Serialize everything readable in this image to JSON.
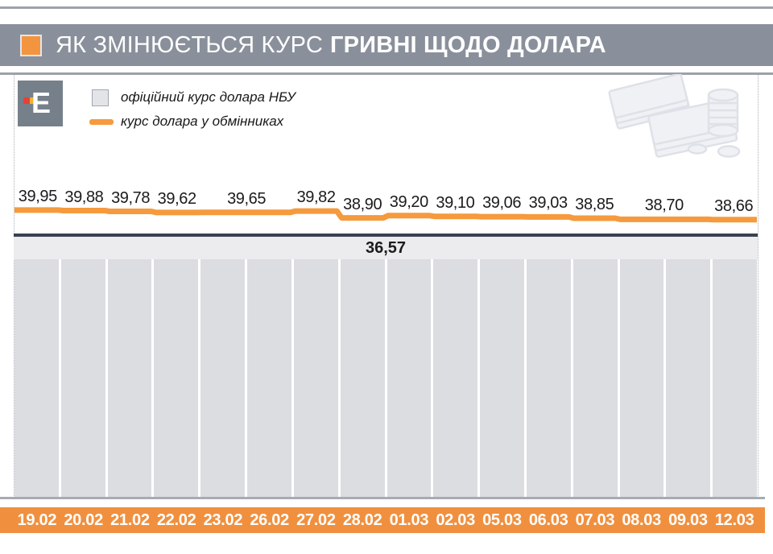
{
  "page": {
    "title_regular": "ЯК ЗМІНЮЄТЬСЯ КУРС",
    "title_bold": "ГРИВНІ ЩОДО ДОЛАРА",
    "logo_letter": "Е"
  },
  "legend": {
    "official": "офіційний курс долара НБУ",
    "exchange": "курс долара у обмінниках"
  },
  "chart_data": {
    "type": "line",
    "title": "ЯК ЗМІНЮЄТЬСЯ КУРС ГРИВНІ ЩОДО ДОЛАРА",
    "categories": [
      "19.02",
      "20.02",
      "21.02",
      "22.02",
      "23.02",
      "26.02",
      "27.02",
      "28.02",
      "01.03",
      "02.03",
      "05.03",
      "06.03",
      "07.03",
      "08.03",
      "09.03",
      "12.03"
    ],
    "series": [
      {
        "name": "курс долара у обмінниках",
        "type": "stepped-line",
        "color": "#F59A3D",
        "values": [
          39.95,
          39.88,
          39.78,
          39.62,
          39.65,
          39.65,
          39.82,
          38.9,
          39.2,
          39.1,
          39.06,
          39.03,
          38.85,
          38.7,
          38.7,
          38.66
        ],
        "value_labels": [
          "39,95",
          "39,88",
          "39,78",
          "39,62",
          "39,65",
          "39,82",
          "38,90",
          "39,20",
          "39,10",
          "39,06",
          "39,03",
          "38,85",
          "38,70",
          "38,66"
        ]
      },
      {
        "name": "офіційний курс долара НБУ",
        "type": "constant-bars",
        "color": "#DCDDE1",
        "value": 36.57,
        "label": "36,57"
      }
    ],
    "decimal_separator": ",",
    "legend_position": "top-left",
    "grid": false,
    "ylim": [
      36.57,
      40.2
    ]
  },
  "colors": {
    "accent_orange": "#F59A3D",
    "date_bar_orange": "#F0903E",
    "title_bar_gray": "#8A909B",
    "official_line_dark": "#3A424E",
    "column_gray": "#DCDDE1",
    "band_gray": "#ECECEF"
  }
}
